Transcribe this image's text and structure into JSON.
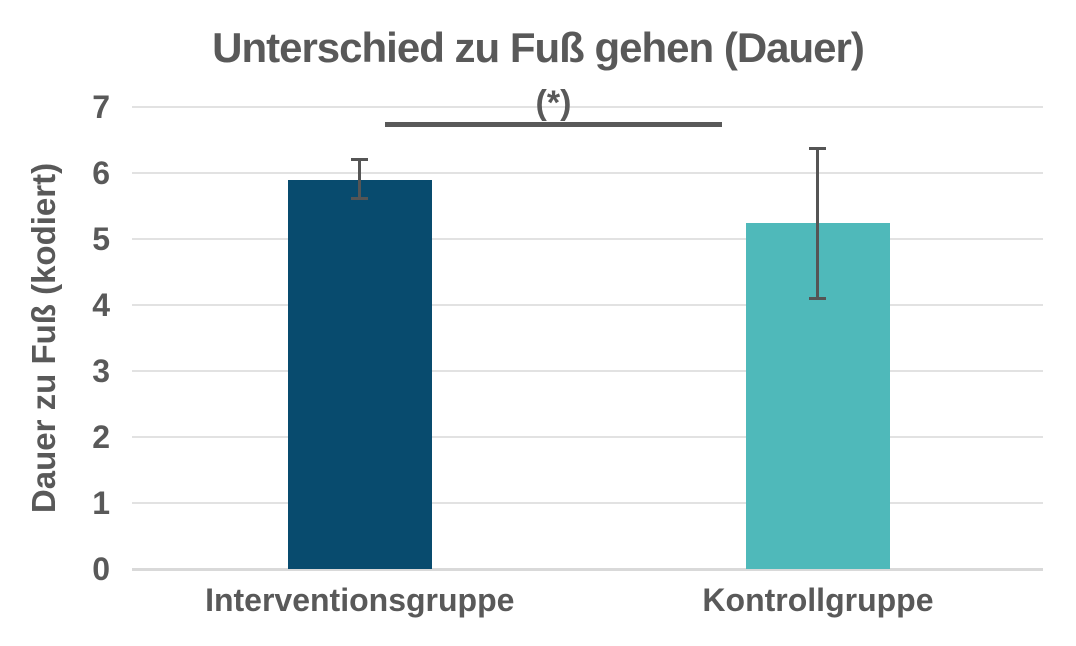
{
  "chart_data": {
    "type": "bar",
    "title": "Unterschied zu Fuß gehen (Dauer)",
    "ylabel": "Dauer zu Fuß (kodiert)",
    "xlabel": "",
    "categories": [
      "Interventionsgruppe",
      "Kontrollgruppe"
    ],
    "values": [
      5.9,
      5.25
    ],
    "error_low": [
      5.62,
      4.1
    ],
    "error_high": [
      6.2,
      6.37
    ],
    "bar_colors": [
      "#084b6e",
      "#4fb9ba"
    ],
    "ylim": [
      0,
      7
    ],
    "ytick_step": 1,
    "ytick_labels": [
      "0",
      "1",
      "2",
      "3",
      "4",
      "5",
      "6",
      "7"
    ],
    "grid": true,
    "legend": null,
    "annotation": {
      "label": "(*)",
      "between": [
        "Interventionsgruppe",
        "Kontrollgruppe"
      ]
    },
    "colors": {
      "text": "#595959",
      "gridline": "#e2e2e2",
      "axis_line": "#d9d9d9",
      "error_bar": "#555555",
      "bracket": "#595959"
    }
  }
}
